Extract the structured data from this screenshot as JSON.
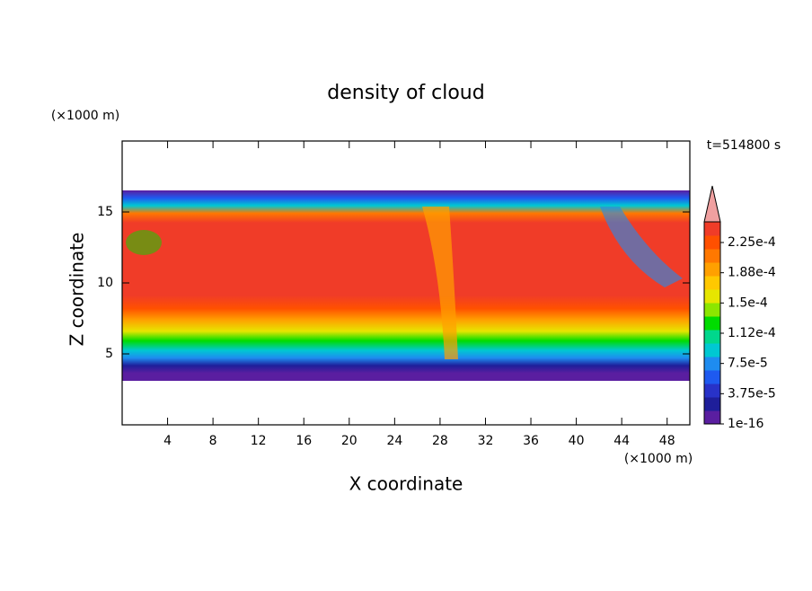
{
  "chart_data": {
    "type": "contour",
    "title": "density of cloud",
    "x_label": "X coordinate",
    "y_label": "Z coordinate",
    "x_unit": "(×1000 m)",
    "y_unit": "(×1000 m)",
    "time_label": "t=514800 s",
    "xlim": [
      0,
      50
    ],
    "xticks": [
      4,
      8,
      12,
      16,
      20,
      24,
      28,
      32,
      36,
      40,
      44,
      48
    ],
    "ylim": [
      0,
      20
    ],
    "yticks": [
      5,
      10,
      15
    ],
    "colorbar": {
      "colors": [
        "#5a1ea0",
        "#1e1e9a",
        "#2832c8",
        "#1e5af0",
        "#1e8cf0",
        "#00c8d2",
        "#00d78c",
        "#00dc00",
        "#8ce600",
        "#e6e600",
        "#ffc800",
        "#ffa000",
        "#ff7800",
        "#ff5000",
        "#f03c28"
      ],
      "extend_color": "#f0a0a0",
      "ticks": [
        {
          "value": 1e-16,
          "label": "1e-16"
        },
        {
          "value": 3.75e-05,
          "label": "3.75e-5"
        },
        {
          "value": 7.5e-05,
          "label": "7.5e-5"
        },
        {
          "value": 0.000112,
          "label": "1.12e-4"
        },
        {
          "value": 0.00015,
          "label": "1.5e-4"
        },
        {
          "value": 0.000188,
          "label": "1.88e-4"
        },
        {
          "value": 0.000225,
          "label": "2.25e-4"
        }
      ]
    }
  }
}
